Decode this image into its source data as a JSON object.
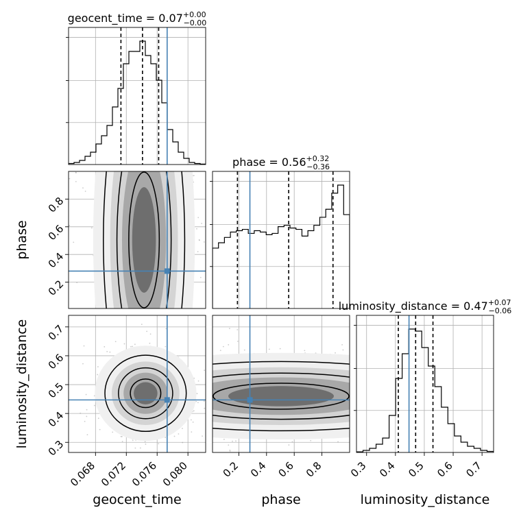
{
  "chart_data": {
    "type": "corner",
    "parameters": [
      "geocent_time",
      "phase",
      "luminosity_distance"
    ],
    "ranges": {
      "geocent_time": [
        0.0645,
        0.0823
      ],
      "phase": [
        0.01,
        1.0
      ],
      "luminosity_distance": [
        0.265,
        0.74
      ]
    },
    "truths": {
      "geocent_time": 0.0773,
      "phase": 0.28,
      "luminosity_distance": 0.447
    },
    "quantiles": {
      "geocent_time": [
        0.0713,
        0.0741,
        0.0762
      ],
      "phase": [
        0.19,
        0.56,
        0.88
      ],
      "luminosity_distance": [
        0.41,
        0.47,
        0.53
      ]
    },
    "titles": [
      {
        "param": "geocent_time",
        "text": "geocent_time = 0.07",
        "sup": "+0.00",
        "sub": "−0.00"
      },
      {
        "param": "phase",
        "text": "phase = 0.56",
        "sup": "+0.32",
        "sub": "−0.36"
      },
      {
        "param": "luminosity_distance",
        "text": "luminosity_distance = 0.47",
        "sup": "+0.07",
        "sub": "−0.06"
      }
    ],
    "axis_labels": {
      "x": [
        "geocent_time",
        "phase",
        "luminosity_distance"
      ],
      "y": [
        "phase",
        "luminosity_distance"
      ]
    },
    "ticks": {
      "geocent_time": [
        0.068,
        0.072,
        0.076,
        0.08
      ],
      "geocent_time_labels": [
        "0.068",
        "0.072",
        "0.076",
        "0.080"
      ],
      "phase": [
        0.2,
        0.4,
        0.6,
        0.8
      ],
      "phase_labels": [
        "0.2",
        "0.4",
        "0.6",
        "0.8"
      ],
      "luminosity_distance": [
        0.3,
        0.4,
        0.5,
        0.6,
        0.7
      ],
      "luminosity_distance_labels": [
        "0.3",
        "0.4",
        "0.5",
        "0.6",
        "0.7"
      ]
    },
    "histograms": {
      "geocent_time": {
        "bins": [
          0.0645,
          0.0823
        ],
        "counts": [
          0.5,
          1,
          2,
          4,
          6,
          10,
          14,
          19,
          28,
          37,
          49,
          55,
          55,
          60,
          53,
          49,
          41,
          30,
          17,
          11,
          6,
          3,
          1,
          0.5,
          0.2
        ]
      },
      "phase": {
        "bins": [
          0.01,
          1.0
        ],
        "counts": [
          0.45,
          0.49,
          0.53,
          0.57,
          0.58,
          0.59,
          0.56,
          0.58,
          0.57,
          0.55,
          0.56,
          0.61,
          0.62,
          0.6,
          0.59,
          0.54,
          0.58,
          0.62,
          0.68,
          0.74,
          0.86,
          0.92,
          0.7
        ]
      },
      "luminosity_distance": {
        "bins": [
          0.265,
          0.74
        ],
        "counts": [
          0.3,
          1,
          2,
          4,
          7,
          18,
          36,
          48,
          60,
          59,
          51,
          42,
          32,
          22,
          14,
          8,
          5,
          3,
          2,
          1,
          0.5
        ]
      }
    },
    "density_panels": [
      {
        "x": "geocent_time",
        "y": "phase"
      },
      {
        "x": "geocent_time",
        "y": "luminosity_distance"
      },
      {
        "x": "phase",
        "y": "luminosity_distance"
      }
    ],
    "grid": true
  }
}
